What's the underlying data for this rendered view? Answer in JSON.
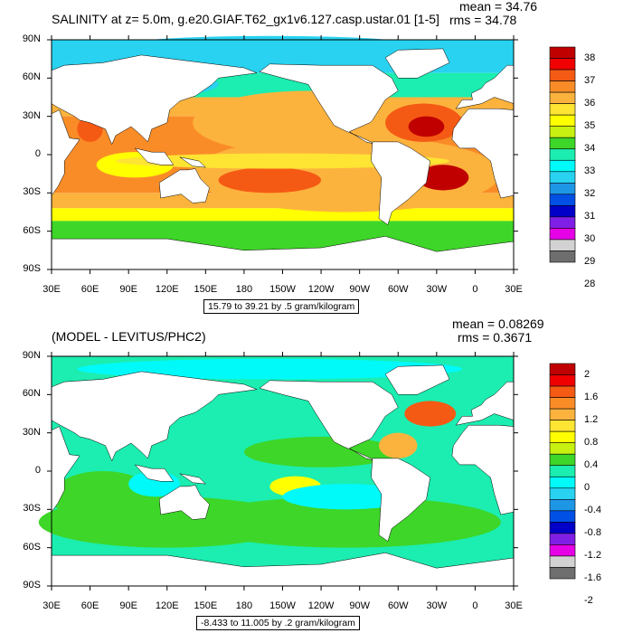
{
  "panels": [
    {
      "title": "SALINITY at z=   5.0m, g.e20.GIAF.T62_gx1v6.127.casp.ustar.01 [1-5]",
      "mean_label": "mean = 34.76",
      "rms_label": "rms = 34.78",
      "info_box": "15.79 to 39.21 by .5 gram/kilogram",
      "xticks": [
        "30E",
        "60E",
        "90E",
        "120E",
        "150E",
        "180",
        "150W",
        "120W",
        "90W",
        "60W",
        "30W",
        "0",
        "30E"
      ],
      "yticks": [
        "90N",
        "60N",
        "30N",
        "0",
        "30S",
        "60S",
        "90S"
      ],
      "colorbar": {
        "labels": [
          "38",
          "37",
          "36",
          "35",
          "34",
          "33",
          "32",
          "31",
          "30",
          "29",
          "28"
        ],
        "colors": [
          "#c00000",
          "#f00000",
          "#f55a14",
          "#fa8c28",
          "#fcb33d",
          "#fee433",
          "#ffff00",
          "#c8f010",
          "#3ed628",
          "#1cedb0",
          "#00fafa",
          "#28d2f0",
          "#1e96e6",
          "#0050e6",
          "#0000c8",
          "#7f1fe5",
          "#e600e6",
          "#d2d2d2",
          "#6e6e6e"
        ]
      }
    },
    {
      "title": "(MODEL - LEVITUS/PHC2)",
      "mean_label": "mean = 0.08269",
      "rms_label": "rms = 0.3671",
      "info_box": "-8.433 to 11.005 by .2 gram/kilogram",
      "xticks": [
        "30E",
        "60E",
        "90E",
        "120E",
        "150E",
        "180",
        "150W",
        "120W",
        "90W",
        "60W",
        "30W",
        "0",
        "30E"
      ],
      "yticks": [
        "90N",
        "60N",
        "30N",
        "0",
        "30S",
        "60S",
        "90S"
      ],
      "colorbar": {
        "labels": [
          "2",
          "1.6",
          "1.2",
          "0.8",
          "0.4",
          "0",
          "-0.4",
          "-0.8",
          "-1.2",
          "-1.6",
          "-2"
        ],
        "colors": [
          "#c00000",
          "#f00000",
          "#f55a14",
          "#fa8c28",
          "#fcb33d",
          "#fee433",
          "#ffff00",
          "#c8f010",
          "#3ed628",
          "#1cedb0",
          "#00fafa",
          "#28d2f0",
          "#1e96e6",
          "#0050e6",
          "#0000c8",
          "#7f1fe5",
          "#e600e6",
          "#d2d2d2",
          "#6e6e6e"
        ]
      }
    }
  ]
}
